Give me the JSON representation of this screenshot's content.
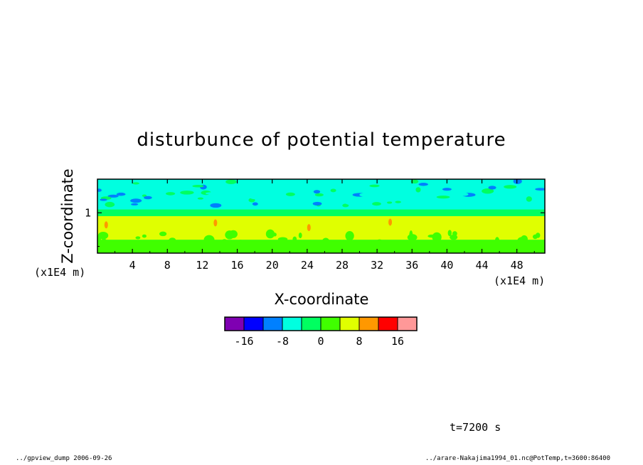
{
  "chart_data": {
    "type": "heatmap",
    "title": "disturbunce of potential temperature",
    "xlabel": "X-coordinate",
    "ylabel": "Z-coordinate",
    "x_unit": "(x1E4 m)",
    "y_unit": "(x1E4 m)",
    "xlim": [
      0,
      51.2
    ],
    "ylim": [
      0.4,
      1.5
    ],
    "x_ticks": [
      "4",
      "8",
      "12",
      "16",
      "20",
      "24",
      "28",
      "32",
      "36",
      "40",
      "44",
      "48"
    ],
    "x_tick_values": [
      4,
      8,
      12,
      16,
      20,
      24,
      28,
      32,
      36,
      40,
      44,
      48
    ],
    "y_ticks": [
      "1"
    ],
    "y_tick_values": [
      1
    ],
    "levels": [
      -20,
      -16,
      -12,
      -8,
      -4,
      0,
      4,
      8,
      12,
      16,
      20
    ],
    "colors": [
      "#7f00b2",
      "#0000ff",
      "#0080ff",
      "#00ffe0",
      "#00ff60",
      "#40ff00",
      "#e0ff00",
      "#ff9800",
      "#ff0000",
      "#ff9898"
    ],
    "colorbar_labels": [
      "-16",
      "-8",
      "0",
      "8",
      "16"
    ],
    "colorbar_label_values": [
      -16,
      -8,
      0,
      8,
      16
    ],
    "layers": [
      {
        "z_from": 1.05,
        "z_to": 1.5,
        "value": -6,
        "description_color": "#00ffe0"
      },
      {
        "z_from": 0.95,
        "z_to": 1.05,
        "value": -2,
        "description_color": "#00ff60"
      },
      {
        "z_from": 0.6,
        "z_to": 0.95,
        "value": 6,
        "description_color": "#e0ff00"
      },
      {
        "z_from": 0.4,
        "z_to": 0.6,
        "value": 2,
        "description_color": "#40ff00"
      }
    ]
  },
  "annotations": {
    "time": "t=7200 s",
    "footer_left": "../gpview_dump  2006-09-26",
    "footer_right": "../arare-Nakajima1994_01.nc@PotTemp,t=3600:86400"
  }
}
